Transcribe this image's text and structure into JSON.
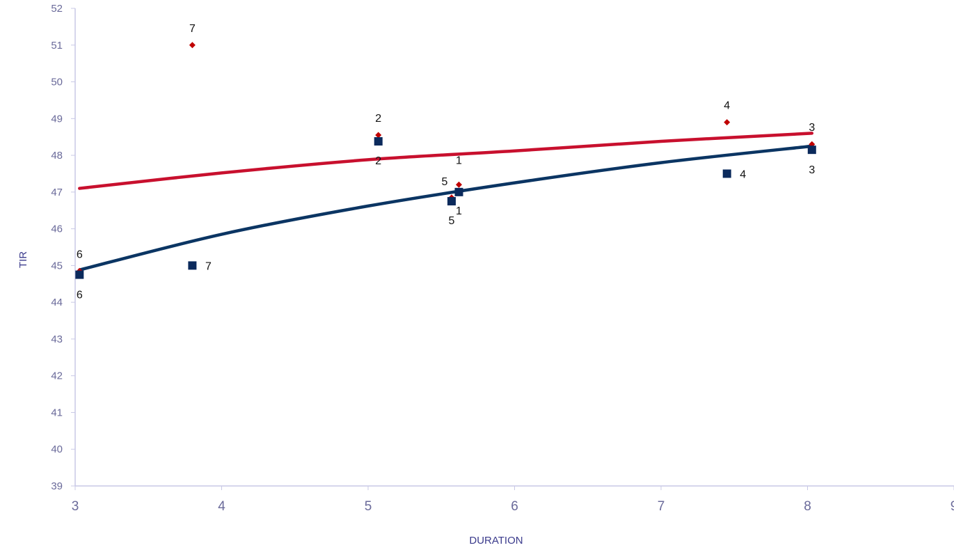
{
  "chart_data": {
    "type": "scatter",
    "title": "",
    "xlabel": "DURATION",
    "ylabel": "TIR",
    "xlim": [
      3,
      9
    ],
    "ylim": [
      39,
      52
    ],
    "x_ticks": [
      "3",
      "4",
      "5",
      "6",
      "7",
      "8",
      "9"
    ],
    "y_ticks": [
      "39",
      "40",
      "41",
      "42",
      "43",
      "44",
      "45",
      "46",
      "47",
      "48",
      "49",
      "50",
      "51",
      "52"
    ],
    "grid": false,
    "legend": "none",
    "series": [
      {
        "marker": "diamond",
        "color": "#c00000",
        "points": [
          {
            "label": "1",
            "x": 5.62,
            "y": 47.2
          },
          {
            "label": "2",
            "x": 5.07,
            "y": 48.55
          },
          {
            "label": "3",
            "x": 8.03,
            "y": 48.3
          },
          {
            "label": "4",
            "x": 7.45,
            "y": 48.9
          },
          {
            "label": "5",
            "x": 5.57,
            "y": 46.85
          },
          {
            "label": "6",
            "x": 3.03,
            "y": 44.85
          },
          {
            "label": "7",
            "x": 3.8,
            "y": 51.0
          }
        ],
        "trendline": {
          "type": "logarithmic",
          "color": "#c8102e",
          "points": [
            [
              3.03,
              47.1
            ],
            [
              4.0,
              47.52
            ],
            [
              5.0,
              47.88
            ],
            [
              6.0,
              48.12
            ],
            [
              7.0,
              48.38
            ],
            [
              8.03,
              48.6
            ]
          ]
        }
      },
      {
        "marker": "square",
        "color": "#0b2a5c",
        "points": [
          {
            "label": "1",
            "x": 5.62,
            "y": 47.0
          },
          {
            "label": "2",
            "x": 5.07,
            "y": 48.38
          },
          {
            "label": "3",
            "x": 8.03,
            "y": 48.15
          },
          {
            "label": "4",
            "x": 7.45,
            "y": 47.5
          },
          {
            "label": "5",
            "x": 5.57,
            "y": 46.75
          },
          {
            "label": "6",
            "x": 3.03,
            "y": 44.75
          },
          {
            "label": "7",
            "x": 3.8,
            "y": 45.0
          }
        ],
        "trendline": {
          "type": "logarithmic",
          "color": "#0b3563",
          "points": [
            [
              3.03,
              44.88
            ],
            [
              4.0,
              45.85
            ],
            [
              5.0,
              46.62
            ],
            [
              6.0,
              47.25
            ],
            [
              7.0,
              47.8
            ],
            [
              8.03,
              48.25
            ]
          ]
        }
      }
    ]
  }
}
